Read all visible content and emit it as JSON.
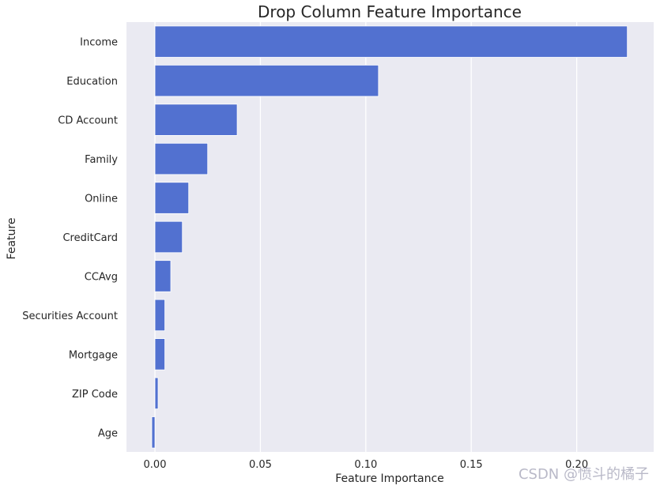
{
  "chart_data": {
    "type": "bar",
    "orientation": "horizontal",
    "title": "Drop Column Feature Importance",
    "xlabel": "Feature Importance",
    "ylabel": "Feature",
    "categories": [
      "Income",
      "Education",
      "CD Account",
      "Family",
      "Online",
      "CreditCard",
      "CCAvg",
      "Securities Account",
      "Mortgage",
      "ZIP Code",
      "Age"
    ],
    "values": [
      0.224,
      0.106,
      0.039,
      0.025,
      0.016,
      0.013,
      0.0075,
      0.0047,
      0.0047,
      0.0015,
      -0.0015
    ],
    "xlim": [
      -0.0135,
      0.2365
    ],
    "xticks": [
      0.0,
      0.05,
      0.1,
      0.15,
      0.2
    ],
    "xtick_labels": [
      "0.00",
      "0.05",
      "0.10",
      "0.15",
      "0.20"
    ],
    "grid": true,
    "bar_color": "#5271d0",
    "background_color": "#eaeaf2",
    "grid_color": "#ffffff"
  },
  "watermark": "CSDN @愤斗的橘子"
}
